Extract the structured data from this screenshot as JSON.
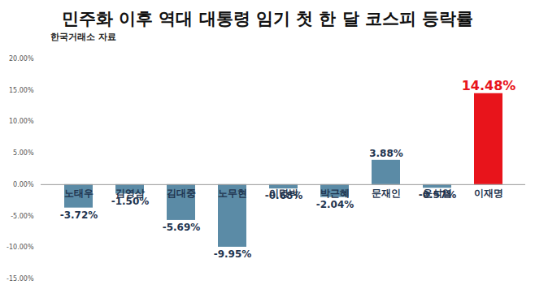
{
  "chart_data": {
    "type": "bar",
    "title": "민주화 이후 역대 대통령 임기 첫 한 달 코스피 등락률",
    "subtitle": "한국거래소 자료",
    "categories": [
      "노태우",
      "김영삼",
      "김대중",
      "노무현",
      "이명박",
      "박근혜",
      "문재인",
      "윤석열",
      "이재명"
    ],
    "values": [
      -3.72,
      -1.5,
      -5.69,
      -9.95,
      -0.68,
      -2.04,
      3.88,
      -0.57,
      14.48
    ],
    "value_labels": [
      "-3.72%",
      "-1.50%",
      "-5.69%",
      "-9.95%",
      "-0.68%",
      "-2.04%",
      "3.88%",
      "-0.57%",
      "14.48%"
    ],
    "colors": [
      "#5b8ba6",
      "#5b8ba6",
      "#5b8ba6",
      "#5b8ba6",
      "#5b8ba6",
      "#5b8ba6",
      "#5b8ba6",
      "#5b8ba6",
      "#e8141b"
    ],
    "ylim": [
      -15,
      20
    ],
    "yticks": [
      {
        "value": -15,
        "label": "-15.00%"
      },
      {
        "value": -10,
        "label": "-10.00%"
      },
      {
        "value": -5,
        "label": "-5.00%"
      },
      {
        "value": 0,
        "label": "0.00%"
      },
      {
        "value": 5,
        "label": "5.00%"
      },
      {
        "value": 10,
        "label": "10.00%"
      },
      {
        "value": 15,
        "label": "15.00%"
      },
      {
        "value": 20,
        "label": "20.00%"
      }
    ],
    "grid": false,
    "data_labels": true
  }
}
